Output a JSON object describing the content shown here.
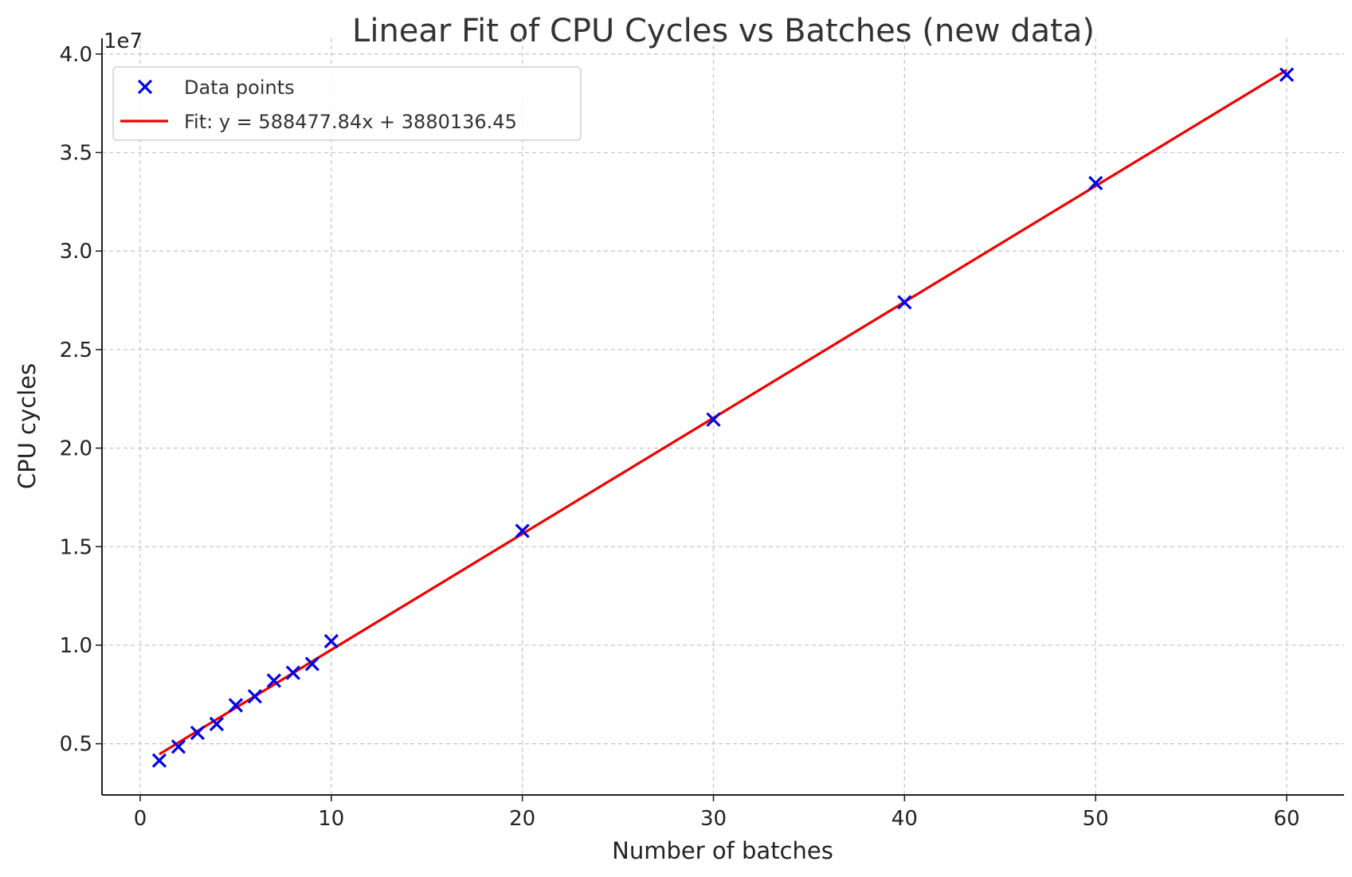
{
  "chart_data": {
    "type": "scatter",
    "title": "Linear Fit of CPU Cycles vs Batches (new data)",
    "xlabel": "Number of batches",
    "ylabel": "CPU cycles",
    "y_offset_label": "1e7",
    "xlim": [
      -2,
      63
    ],
    "ylim": [
      2400000,
      40800000
    ],
    "xticks": [
      0,
      10,
      20,
      30,
      40,
      50,
      60
    ],
    "xtick_labels": [
      "0",
      "10",
      "20",
      "30",
      "40",
      "50",
      "60"
    ],
    "yticks": [
      5000000,
      10000000,
      15000000,
      20000000,
      25000000,
      30000000,
      35000000,
      40000000
    ],
    "ytick_labels": [
      "0.5",
      "1.0",
      "1.5",
      "2.0",
      "2.5",
      "3.0",
      "3.5",
      "4.0"
    ],
    "grid": true,
    "legend_position": "top-left",
    "series": [
      {
        "name": "Data points",
        "kind": "scatter",
        "marker": "x",
        "color": "#0000ee",
        "x": [
          1,
          2,
          3,
          4,
          5,
          6,
          7,
          8,
          9,
          10,
          20,
          30,
          40,
          50,
          60
        ],
        "y": [
          4150000,
          4850000,
          5550000,
          6000000,
          6950000,
          7400000,
          8200000,
          8600000,
          9050000,
          10200000,
          15800000,
          21450000,
          27400000,
          33450000,
          38950000
        ]
      },
      {
        "name": "Fit: y = 588477.84x + 3880136.45",
        "kind": "line",
        "color": "#ee0000",
        "slope": 588477.84,
        "intercept": 3880136.45,
        "x_range": [
          1,
          60
        ]
      }
    ]
  }
}
